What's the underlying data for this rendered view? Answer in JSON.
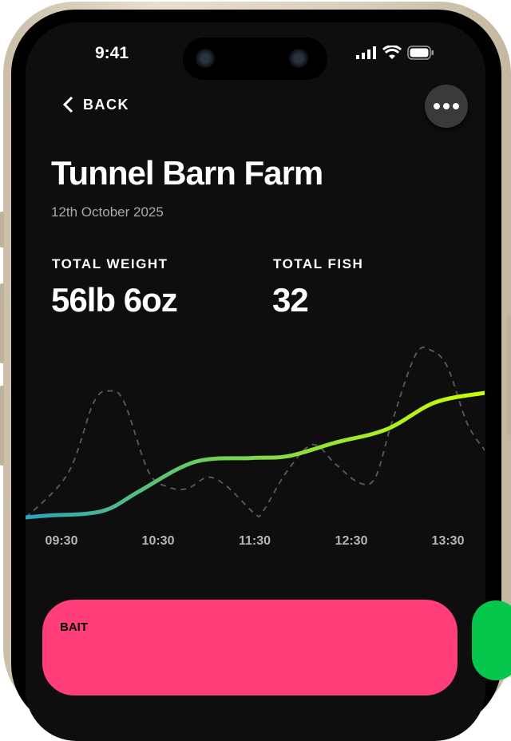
{
  "status_bar": {
    "time": "9:41",
    "icons": [
      "signal-icon",
      "wifi-icon",
      "battery-icon"
    ]
  },
  "nav": {
    "back_label": "BACK",
    "more_icon": "ellipsis-icon"
  },
  "header": {
    "title": "Tunnel Barn Farm",
    "date": "12th October 2025"
  },
  "stats": [
    {
      "label": "TOTAL WEIGHT",
      "value": "56lb 6oz"
    },
    {
      "label": "TOTAL FISH",
      "value": "32"
    }
  ],
  "chart_data": {
    "type": "line",
    "x_ticks": [
      "09:30",
      "10:30",
      "11:30",
      "12:30",
      "13:30"
    ],
    "grid": false,
    "series": [
      {
        "style": "solid-gradient",
        "colors": [
          "#2aa3bf",
          "#6fcf5a",
          "#ccff00"
        ],
        "x": [
          "09:08",
          "09:22",
          "09:46",
          "10:01",
          "10:19",
          "10:53",
          "11:28",
          "11:51",
          "12:20",
          "12:52",
          "13:22",
          "13:53"
        ],
        "y": [
          5,
          6,
          7,
          10,
          19,
          34,
          36,
          37,
          44,
          51,
          65,
          70
        ]
      },
      {
        "style": "dashed",
        "colors": [
          "#555555"
        ],
        "x": [
          "09:08",
          "09:34",
          "09:50",
          "10:00",
          "10:09",
          "10:24",
          "10:36",
          "10:48",
          "11:01",
          "11:13",
          "11:30",
          "11:35",
          "11:50",
          "12:06",
          "12:20",
          "12:35",
          "12:45",
          "12:55",
          "13:10",
          "13:20",
          "13:30",
          "13:42",
          "13:53"
        ],
        "y": [
          5,
          28,
          65,
          71,
          65,
          29,
          21,
          20,
          26,
          21,
          7,
          8,
          29,
          43,
          33,
          23,
          26,
          54,
          90,
          92,
          83,
          54,
          40
        ]
      }
    ]
  },
  "cards": [
    {
      "label": "BAIT",
      "color": "#ff3e7a"
    },
    {
      "label": "",
      "color": "#06c64b"
    }
  ]
}
